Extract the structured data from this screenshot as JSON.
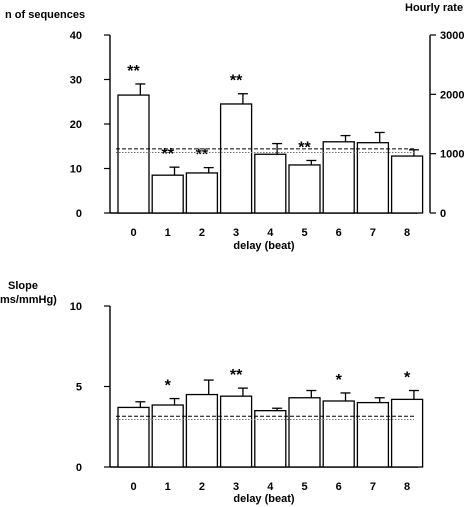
{
  "chart_data": [
    {
      "type": "bar",
      "ylabel": "n of sequences",
      "y2label": "Hourly rate",
      "xlabel": "delay  (beat)",
      "categories": [
        "0",
        "1",
        "2",
        "3",
        "4",
        "5",
        "6",
        "7",
        "8"
      ],
      "values": [
        26.5,
        8.5,
        9.0,
        24.5,
        13.2,
        10.8,
        16.0,
        15.8,
        12.8
      ],
      "errors": [
        2.5,
        1.8,
        1.2,
        2.3,
        2.4,
        1.0,
        1.4,
        2.3,
        1.4
      ],
      "significance": [
        "**",
        "**",
        "**",
        "**",
        "",
        "**",
        "",
        "",
        ""
      ],
      "ylim": [
        0,
        40
      ],
      "yticks": [
        "0",
        "10",
        "20",
        "30",
        "40"
      ],
      "y2lim": [
        0,
        3000
      ],
      "y2ticks": [
        "0",
        "1000",
        "2000",
        "3000"
      ],
      "reference_lines": [
        {
          "style": "dashed",
          "value": 14.4
        },
        {
          "style": "dotted",
          "value": 13.6
        }
      ]
    },
    {
      "type": "bar",
      "ylabel": "Slope\nms/mmHg)",
      "xlabel": "delay  (beat)",
      "categories": [
        "0",
        "1",
        "2",
        "3",
        "4",
        "5",
        "6",
        "7",
        "8"
      ],
      "values": [
        3.7,
        3.85,
        4.5,
        4.4,
        3.5,
        4.3,
        4.1,
        4.0,
        4.2
      ],
      "errors": [
        0.35,
        0.4,
        0.9,
        0.5,
        0.15,
        0.45,
        0.5,
        0.3,
        0.55
      ],
      "significance": [
        "",
        "*",
        "",
        "**",
        "",
        "",
        "*",
        "",
        "*"
      ],
      "ylim": [
        0,
        10
      ],
      "yticks": [
        "0",
        "5",
        "10"
      ],
      "reference_lines": [
        {
          "style": "dashed",
          "value": 3.15
        },
        {
          "style": "dotted",
          "value": 2.95
        }
      ]
    }
  ]
}
